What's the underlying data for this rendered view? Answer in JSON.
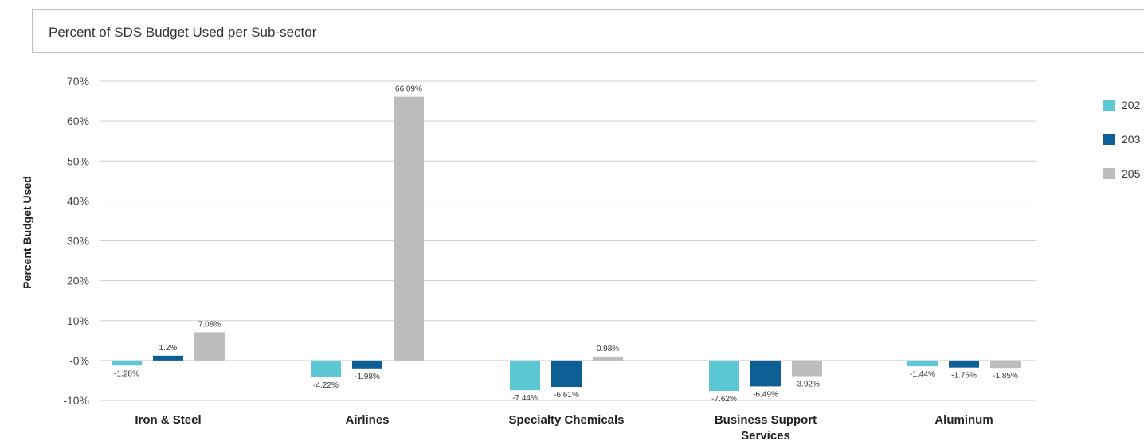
{
  "chart_data": {
    "type": "bar",
    "title": "Percent of SDS Budget Used per Sub-sector",
    "xlabel": "",
    "ylabel": "Percent Budget Used",
    "ylim": [
      -10,
      70
    ],
    "yticks": [
      70,
      60,
      50,
      40,
      30,
      20,
      10,
      0,
      -10
    ],
    "ytick_labels": [
      "70%",
      "60%",
      "50%",
      "40%",
      "30%",
      "20%",
      "10%",
      "-0%",
      "-10%"
    ],
    "categories": [
      "Iron & Steel",
      "Airlines",
      "Specialty Chemicals",
      "Business Support Services",
      "Aluminum"
    ],
    "series": [
      {
        "name": "202",
        "color": "#5bc8d3",
        "values": [
          -1.28,
          -4.22,
          -7.44,
          -7.62,
          -1.44
        ],
        "labels": [
          "-1.28%",
          "-4.22%",
          "-7.44%",
          "-7.62%",
          "-1.44%"
        ]
      },
      {
        "name": "203",
        "color": "#0d5f96",
        "values": [
          1.2,
          -1.98,
          -6.61,
          -6.49,
          -1.76
        ],
        "labels": [
          "1.2%",
          "-1.98%",
          "-6.61%",
          "-6.49%",
          "-1.76%"
        ]
      },
      {
        "name": "205",
        "color": "#bdbdbd",
        "values": [
          7.08,
          66.09,
          0.98,
          -3.92,
          -1.85
        ],
        "labels": [
          "7.08%",
          "66.09%",
          "0.98%",
          "-3.92%",
          "-1.85%"
        ]
      }
    ],
    "grid": true,
    "legend_position": "right"
  }
}
